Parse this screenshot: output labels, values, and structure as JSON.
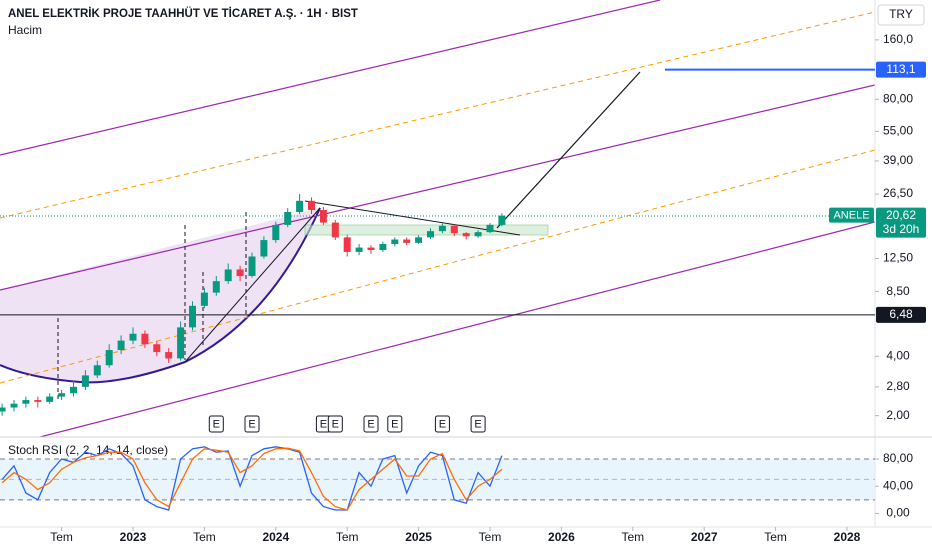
{
  "chart_data": {
    "type": "candlestick",
    "title": "ANEL ELEKTRİK PROJE TAAHHÜT VE TİCARET A.Ş. · 1H · BIST",
    "subtitle": "Hacim",
    "currency": "TRY",
    "log_scale": true,
    "up_color": "#089981",
    "down_color": "#f23645",
    "x": [
      "2022-02",
      "2022-03",
      "2022-04",
      "2022-05",
      "2022-06",
      "2022-07",
      "2022-08",
      "2022-09",
      "2022-10",
      "2022-11",
      "2022-12",
      "2023-01",
      "2023-02",
      "2023-03",
      "2023-04",
      "2023-05",
      "2023-06",
      "2023-07",
      "2023-08",
      "2023-09",
      "2023-10",
      "2023-11",
      "2023-12",
      "2024-01",
      "2024-02",
      "2024-03",
      "2024-04",
      "2024-05",
      "2024-06",
      "2024-07",
      "2024-08",
      "2024-09",
      "2024-10",
      "2024-11",
      "2024-12",
      "2025-01",
      "2025-02",
      "2025-03",
      "2025-04",
      "2025-05",
      "2025-06",
      "2025-07",
      "2025-08"
    ],
    "open": [
      2.1,
      2.2,
      2.3,
      2.4,
      2.35,
      2.5,
      2.6,
      2.8,
      3.2,
      3.6,
      4.3,
      4.8,
      5.2,
      4.6,
      4.2,
      3.9,
      5.6,
      7.2,
      8.4,
      9.6,
      11.0,
      10.2,
      12.8,
      15.5,
      18.5,
      21.5,
      24.5,
      22.0,
      19.0,
      16.0,
      13.5,
      14.2,
      13.8,
      14.8,
      15.6,
      15.0,
      16.0,
      17.2,
      18.3,
      16.8,
      16.2,
      17.0,
      18.5
    ],
    "high": [
      2.3,
      2.4,
      2.5,
      2.5,
      2.6,
      2.7,
      3.0,
      3.4,
      3.8,
      4.6,
      5.1,
      5.6,
      5.4,
      4.8,
      4.4,
      6.0,
      7.6,
      8.9,
      10.2,
      11.8,
      11.5,
      13.4,
      16.2,
      19.2,
      22.5,
      26.5,
      25.5,
      22.8,
      19.6,
      16.5,
      14.8,
      14.6,
      15.2,
      16.0,
      16.0,
      16.4,
      17.8,
      18.8,
      18.6,
      17.0,
      17.4,
      18.9,
      21.2
    ],
    "low": [
      2.0,
      2.1,
      2.2,
      2.2,
      2.3,
      2.4,
      2.5,
      2.7,
      3.1,
      3.5,
      4.1,
      4.6,
      4.4,
      4.0,
      3.7,
      3.8,
      5.4,
      7.0,
      8.1,
      9.3,
      9.6,
      10.0,
      12.5,
      15.0,
      18.0,
      21.0,
      21.0,
      18.5,
      15.5,
      12.8,
      13.0,
      13.2,
      13.5,
      14.4,
      14.6,
      14.8,
      15.7,
      16.8,
      16.2,
      15.6,
      15.9,
      16.8,
      18.2
    ],
    "close": [
      2.2,
      2.3,
      2.4,
      2.35,
      2.5,
      2.6,
      2.8,
      3.2,
      3.6,
      4.3,
      4.8,
      5.2,
      4.6,
      4.2,
      3.9,
      5.6,
      7.2,
      8.4,
      9.6,
      11.0,
      10.2,
      12.8,
      15.5,
      18.5,
      21.5,
      24.5,
      22.0,
      19.0,
      16.0,
      13.5,
      14.2,
      13.8,
      14.8,
      15.6,
      15.0,
      16.0,
      17.2,
      18.3,
      16.8,
      16.2,
      17.0,
      18.5,
      20.62
    ],
    "xlim": [
      "2022-01",
      "2028-03"
    ],
    "xticks": [
      {
        "value": "2022-07",
        "label": "Tem"
      },
      {
        "value": "2023-01",
        "label": "2023"
      },
      {
        "value": "2023-07",
        "label": "Tem"
      },
      {
        "value": "2024-01",
        "label": "2024"
      },
      {
        "value": "2024-07",
        "label": "Tem"
      },
      {
        "value": "2025-01",
        "label": "2025"
      },
      {
        "value": "2025-07",
        "label": "Tem"
      },
      {
        "value": "2026-01",
        "label": "2026"
      },
      {
        "value": "2026-07",
        "label": "Tem"
      },
      {
        "value": "2027-01",
        "label": "2027"
      },
      {
        "value": "2027-07",
        "label": "Tem"
      },
      {
        "value": "2028-01",
        "label": "2028"
      }
    ],
    "ylim": [
      1.56,
      232
    ],
    "yticks": [
      {
        "value": 2,
        "label": "2,00"
      },
      {
        "value": 2.8,
        "label": "2,80"
      },
      {
        "value": 4,
        "label": "4,00"
      },
      {
        "value": 8.5,
        "label": "8,50"
      },
      {
        "value": 12.5,
        "label": "12,50"
      },
      {
        "value": 26.5,
        "label": "26,50"
      },
      {
        "value": 39,
        "label": "39,00"
      },
      {
        "value": 55,
        "label": "55,00"
      },
      {
        "value": 80,
        "label": "80,00"
      },
      {
        "value": 160,
        "label": "160,0"
      }
    ],
    "symbol": "ANELE",
    "last_price": {
      "value": 20.62,
      "label": "20,62"
    },
    "countdown": "3d 20h",
    "hlines": [
      {
        "value": 6.48,
        "label": "6,48",
        "color": "#131722"
      },
      {
        "value": 113.1,
        "label": "113,1",
        "color": "#2962ff"
      }
    ],
    "earnings": {
      "label": "E",
      "x": [
        "2023-08",
        "2023-11",
        "2024-05",
        "2024-06",
        "2024-09",
        "2024-11",
        "2025-03",
        "2025-06"
      ]
    },
    "stoch_rsi": {
      "title": "Stoch RSI (2, 2, 14, 14, close)",
      "ylim": [
        -20,
        108
      ],
      "yticks": [
        {
          "value": 0,
          "label": "0,00"
        },
        {
          "value": 40,
          "label": "40,00"
        },
        {
          "value": 80,
          "label": "80,00"
        }
      ],
      "bands": [
        20,
        80
      ],
      "midline": 50,
      "series": [
        {
          "color": "#2962ff",
          "values": [
            50,
            70,
            30,
            20,
            60,
            80,
            75,
            90,
            85,
            95,
            88,
            70,
            20,
            10,
            5,
            80,
            95,
            98,
            90,
            92,
            40,
            85,
            95,
            98,
            95,
            90,
            30,
            10,
            5,
            5,
            60,
            40,
            80,
            85,
            30,
            70,
            90,
            85,
            20,
            15,
            60,
            40,
            85
          ]
        },
        {
          "color": "#ff6d00",
          "values": [
            45,
            60,
            50,
            35,
            45,
            65,
            75,
            82,
            85,
            90,
            90,
            80,
            45,
            20,
            10,
            45,
            80,
            95,
            93,
            90,
            60,
            70,
            88,
            95,
            96,
            92,
            60,
            25,
            10,
            5,
            35,
            50,
            65,
            80,
            55,
            55,
            80,
            88,
            50,
            20,
            40,
            50,
            65
          ]
        }
      ]
    }
  }
}
